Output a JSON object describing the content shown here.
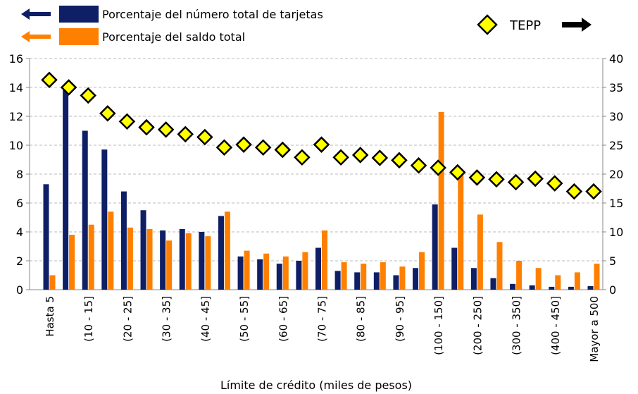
{
  "chart_data": {
    "type": "bar",
    "x_label": "Límite de crédito (miles de pesos)",
    "categories": [
      "Hasta 5",
      null,
      "(10 - 15]",
      null,
      "(20 - 25]",
      null,
      "(30 - 35]",
      null,
      "(40 - 45]",
      null,
      "(50 - 55]",
      null,
      "(60 - 65]",
      null,
      "(70 - 75]",
      null,
      "(80 - 85]",
      null,
      "(90 - 95]",
      null,
      "(100 - 150]",
      null,
      "(200 - 250]",
      null,
      "(300 - 350]",
      null,
      "(400 - 450]",
      null,
      "Mayor a 500"
    ],
    "series": [
      {
        "name": "Porcentaje del número total de tarjetas",
        "color": "#0f1f66",
        "type": "bar",
        "values": [
          7.3,
          13.8,
          11.0,
          9.7,
          6.8,
          5.5,
          4.1,
          4.2,
          4.0,
          5.1,
          2.3,
          2.1,
          1.8,
          2.0,
          2.9,
          1.3,
          1.2,
          1.2,
          1.0,
          1.5,
          5.9,
          2.9,
          1.5,
          0.8,
          0.4,
          0.3,
          0.2,
          0.2,
          0.25
        ]
      },
      {
        "name": "Porcentaje del saldo total",
        "color": "#ff8000",
        "type": "bar",
        "values": [
          1.0,
          3.8,
          4.5,
          5.4,
          4.3,
          4.2,
          3.4,
          3.9,
          3.7,
          5.4,
          2.7,
          2.5,
          2.3,
          2.6,
          4.1,
          1.9,
          1.8,
          1.9,
          1.6,
          2.6,
          12.3,
          8.0,
          5.2,
          3.3,
          2.0,
          1.5,
          1.0,
          1.2,
          1.8
        ]
      },
      {
        "name": "TEPP",
        "color": "#ffff00",
        "type": "scatter",
        "axis": "y2",
        "values": [
          36.3,
          35.0,
          33.6,
          30.5,
          29.1,
          28.1,
          27.7,
          26.9,
          26.4,
          24.6,
          25.1,
          24.6,
          24.2,
          22.9,
          25.1,
          22.9,
          23.3,
          22.8,
          22.4,
          21.5,
          21.1,
          20.3,
          19.4,
          19.1,
          18.6,
          19.2,
          18.4,
          17.0,
          17.0
        ]
      }
    ],
    "ylim": [
      0,
      16
    ],
    "yticks": [
      0,
      2,
      4,
      6,
      8,
      10,
      12,
      14,
      16
    ],
    "y2lim": [
      0,
      40
    ],
    "y2ticks": [
      0,
      5,
      10,
      15,
      20,
      25,
      30,
      35,
      40
    ],
    "grid": true
  }
}
